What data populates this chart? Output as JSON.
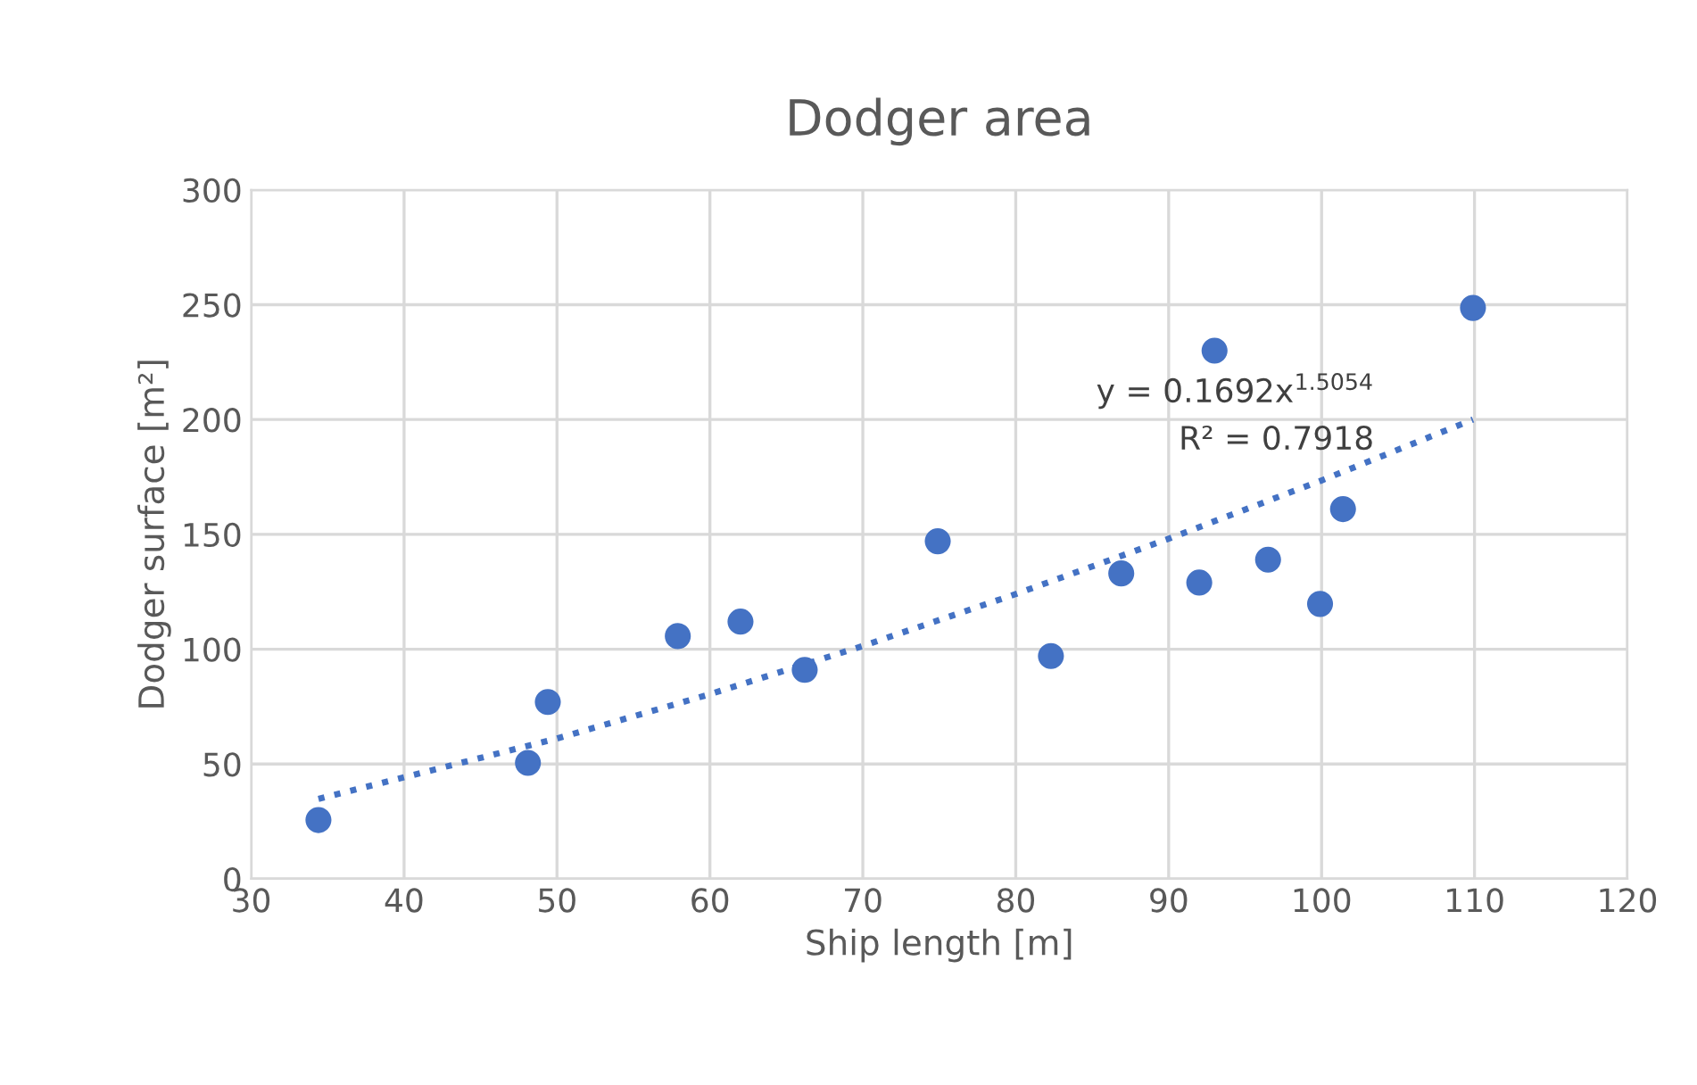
{
  "chart_data": {
    "type": "scatter",
    "title": "Dodger area",
    "xlabel": "Ship length [m]",
    "ylabel": "Dodger surface [m²]",
    "xlim": [
      30,
      120
    ],
    "xticks": [
      30,
      40,
      50,
      60,
      70,
      80,
      90,
      100,
      110,
      120
    ],
    "ylim": [
      0,
      300
    ],
    "yticks": [
      0,
      50,
      100,
      150,
      200,
      250,
      300
    ],
    "grid": true,
    "marker": "circle",
    "series": [
      {
        "color": "#4472c4",
        "x": [
          34.4,
          48.1,
          49.4,
          57.9,
          62.0,
          66.2,
          74.9,
          82.3,
          86.9,
          92.0,
          93.0,
          96.5,
          99.9,
          101.4,
          109.9
        ],
        "values": [
          25.6,
          50.5,
          77,
          105.7,
          112,
          91,
          147,
          97,
          133,
          129,
          230,
          139,
          119.7,
          161,
          248.6
        ]
      },
      {
        "type": "line",
        "color": "#4472c4",
        "line_style": "dotted",
        "marker": "none",
        "x": [
          34.4,
          50,
          60,
          70,
          80,
          90,
          100,
          109.9
        ],
        "values": [
          34.8,
          61.1,
          80.4,
          101.4,
          124.0,
          148.1,
          173.5,
          200.0
        ]
      }
    ],
    "annotations": [
      "y = 0.1692x$^{1.5054}$",
      "R² = 0.7918"
    ]
  }
}
